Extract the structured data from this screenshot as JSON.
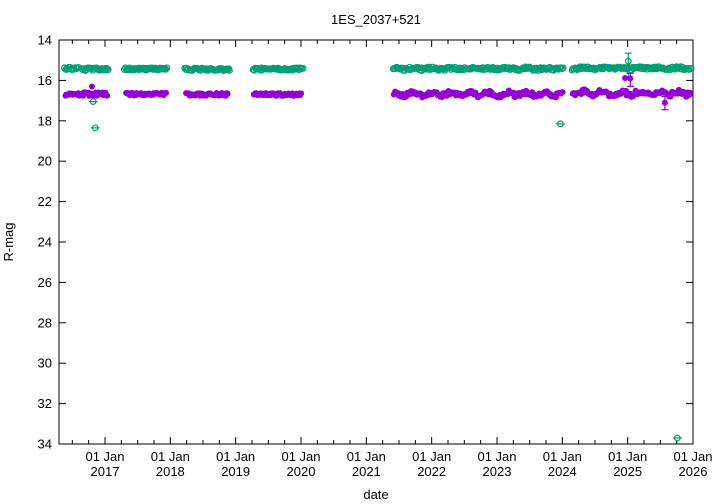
{
  "chart_data": {
    "type": "scatter",
    "title": "1ES_2037+521",
    "xlabel": "date",
    "ylabel": "R-mag",
    "x_axis": {
      "min_year": 2016.296,
      "max_year": 2026.0,
      "minor_tick_interval_years": 0.25,
      "major_ticks": [
        {
          "year": 2017,
          "label_line1": "01 Jan",
          "label_line2": "2017"
        },
        {
          "year": 2018,
          "label_line1": "01 Jan",
          "label_line2": "2018"
        },
        {
          "year": 2019,
          "label_line1": "01 Jan",
          "label_line2": "2019"
        },
        {
          "year": 2020,
          "label_line1": "01 Jan",
          "label_line2": "2020"
        },
        {
          "year": 2021,
          "label_line1": "01 Jan",
          "label_line2": "2021"
        },
        {
          "year": 2022,
          "label_line1": "01 Jan",
          "label_line2": "2022"
        },
        {
          "year": 2023,
          "label_line1": "01 Jan",
          "label_line2": "2023"
        },
        {
          "year": 2024,
          "label_line1": "01 Jan",
          "label_line2": "2024"
        },
        {
          "year": 2025,
          "label_line1": "01 Jan",
          "label_line2": "2025"
        },
        {
          "year": 2026,
          "label_line1": "01 Jan",
          "label_line2": "2026"
        }
      ]
    },
    "y_axis": {
      "min": 14,
      "max": 34,
      "inverted": true,
      "tick_step": 2,
      "ticks": [
        14,
        16,
        18,
        20,
        22,
        24,
        26,
        28,
        30,
        32,
        34
      ]
    },
    "frame_color": "#000000",
    "background_color": "#ffffff",
    "series": [
      {
        "name": "green-open-circle-series",
        "color": "#009e73",
        "marker": "open-circle",
        "bands": [
          {
            "x_start": 2016.38,
            "x_end": 2016.6,
            "mag": 15.42,
            "jitter": 0.07,
            "n": 14
          },
          {
            "x_start": 2016.65,
            "x_end": 2017.05,
            "mag": 15.45,
            "jitter": 0.07,
            "n": 30
          },
          {
            "x_start": 2017.3,
            "x_end": 2017.95,
            "mag": 15.43,
            "jitter": 0.06,
            "n": 48
          },
          {
            "x_start": 2018.22,
            "x_end": 2018.91,
            "mag": 15.45,
            "jitter": 0.06,
            "n": 48
          },
          {
            "x_start": 2019.27,
            "x_end": 2020.03,
            "mag": 15.44,
            "jitter": 0.06,
            "n": 52
          },
          {
            "x_start": 2021.41,
            "x_end": 2024.01,
            "mag": 15.42,
            "jitter": 0.07,
            "n": 165,
            "wiggle": 0.03
          },
          {
            "x_start": 2024.15,
            "x_end": 2025.97,
            "mag": 15.4,
            "jitter": 0.07,
            "n": 120,
            "wiggle": 0.03
          }
        ],
        "outliers": [
          {
            "x": 2016.82,
            "mag": 17.05,
            "hbar": true
          },
          {
            "x": 2016.85,
            "mag": 18.35,
            "hbar": true
          },
          {
            "x": 2023.97,
            "mag": 18.15,
            "hbar": true
          },
          {
            "x": 2025.76,
            "mag": 33.7,
            "hbar": true
          }
        ],
        "errorbar_points": [
          {
            "x": 2025.01,
            "mag": 15.05,
            "err_up": 0.4,
            "err_down": 0.9
          }
        ]
      },
      {
        "name": "purple-filled-circle-series",
        "color": "#9400d3",
        "marker": "filled-circle",
        "bands": [
          {
            "x_start": 2016.39,
            "x_end": 2016.61,
            "mag": 16.7,
            "jitter": 0.07,
            "n": 13
          },
          {
            "x_start": 2016.66,
            "x_end": 2017.03,
            "mag": 16.68,
            "jitter": 0.09,
            "n": 30
          },
          {
            "x_start": 2017.32,
            "x_end": 2017.93,
            "mag": 16.68,
            "jitter": 0.07,
            "n": 42
          },
          {
            "x_start": 2018.24,
            "x_end": 2018.88,
            "mag": 16.69,
            "jitter": 0.07,
            "n": 42
          },
          {
            "x_start": 2019.28,
            "x_end": 2020.0,
            "mag": 16.7,
            "jitter": 0.07,
            "n": 48
          },
          {
            "x_start": 2021.42,
            "x_end": 2024.0,
            "mag": 16.67,
            "jitter": 0.11,
            "n": 155,
            "wiggle": 0.07
          },
          {
            "x_start": 2024.16,
            "x_end": 2025.96,
            "mag": 16.63,
            "jitter": 0.12,
            "n": 112,
            "wiggle": 0.08
          }
        ],
        "outliers": [
          {
            "x": 2016.8,
            "mag": 16.3
          },
          {
            "x": 2024.96,
            "mag": 15.88
          }
        ],
        "errorbar_points": [
          {
            "x": 2025.04,
            "mag": 15.9,
            "err_up": 0.25,
            "err_down": 0.4
          },
          {
            "x": 2025.57,
            "mag": 17.1,
            "err_up": 0.3,
            "err_down": 0.35
          }
        ]
      }
    ]
  }
}
